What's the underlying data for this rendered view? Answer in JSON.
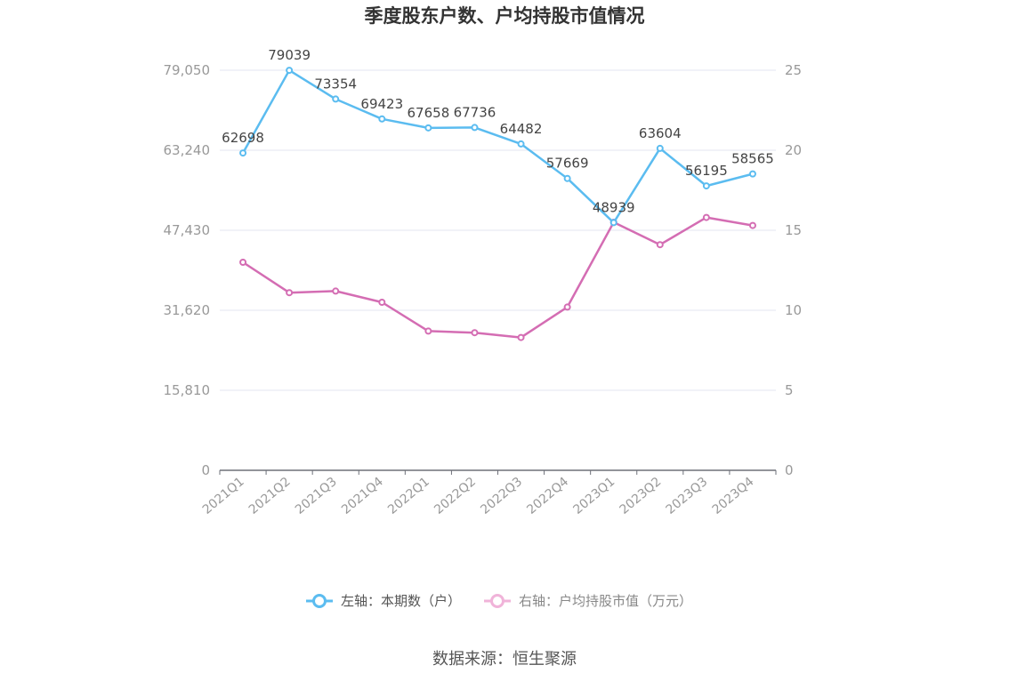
{
  "chart_data": {
    "type": "line",
    "title": "季度股东户数、户均持股市值情况",
    "categories": [
      "2021Q1",
      "2021Q2",
      "2021Q3",
      "2021Q4",
      "2022Q1",
      "2022Q2",
      "2022Q3",
      "2022Q4",
      "2023Q1",
      "2023Q2",
      "2023Q3",
      "2023Q4"
    ],
    "left_axis": {
      "ticks": [
        "0",
        "15,810",
        "31,620",
        "47,430",
        "63,240",
        "79,050"
      ],
      "range": [
        0,
        79050
      ]
    },
    "right_axis": {
      "ticks": [
        "0",
        "5",
        "10",
        "15",
        "20",
        "25"
      ],
      "range": [
        0,
        25
      ]
    },
    "series": [
      {
        "name": "左轴：本期数（户）",
        "axis": "left",
        "color": "#5bbcf0",
        "values": [
          62698,
          79039,
          73354,
          69423,
          67658,
          67736,
          64482,
          57669,
          48939,
          63604,
          56195,
          58565
        ],
        "labels": [
          "62698",
          "79039",
          "73354",
          "69423",
          "67658",
          "67736",
          "64482",
          "57669",
          "48939",
          "63604",
          "56195",
          "58565"
        ]
      },
      {
        "name": "右轴：户均持股市值（万元）",
        "axis": "right",
        "color": "#d46db3",
        "values": [
          13.0,
          11.1,
          11.2,
          10.5,
          8.7,
          8.6,
          8.3,
          10.2,
          15.5,
          14.1,
          15.8,
          15.3
        ]
      }
    ],
    "grid": true,
    "legend_position": "bottom-center"
  },
  "source": "数据来源：恒生聚源"
}
